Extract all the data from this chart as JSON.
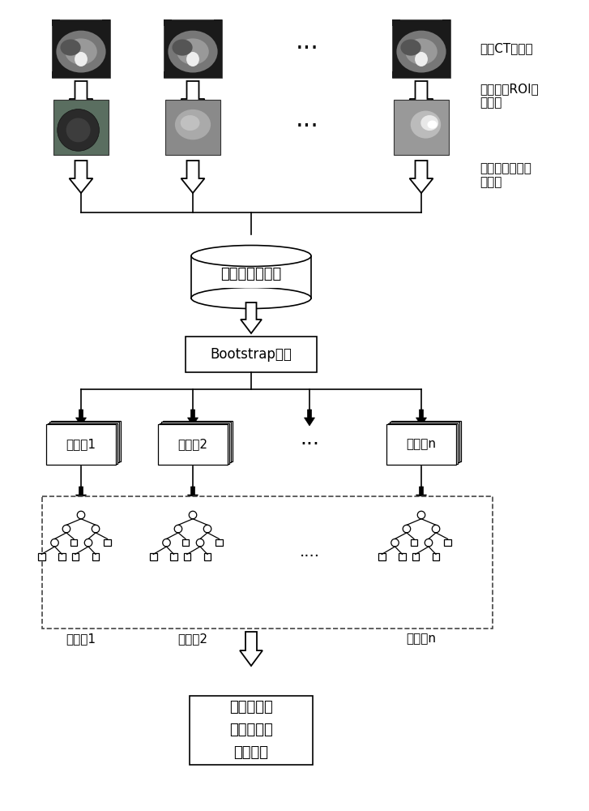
{
  "bg_color": "#ffffff",
  "text_color": "#000000",
  "label_ct": "肝脏CT数据集",
  "label_roi": "肝脏病变ROI区\n域提取",
  "label_feature": "提取病变区域特\n征向量",
  "label_db": "肝脏特征数据集",
  "label_bootstrap": "Bootstrap抽样",
  "label_train1": "训练集1",
  "label_train2": "训练集2",
  "label_train_dots": "···",
  "label_trainn": "训练集n",
  "label_tree1": "决策树1",
  "label_tree2": "决策树2",
  "label_tree_dots": "....",
  "label_treen": "决策树n",
  "label_model": "随机森林局\n部病变识别\n决策模型",
  "label_dots_row1": "···",
  "label_dots_row2": "···"
}
